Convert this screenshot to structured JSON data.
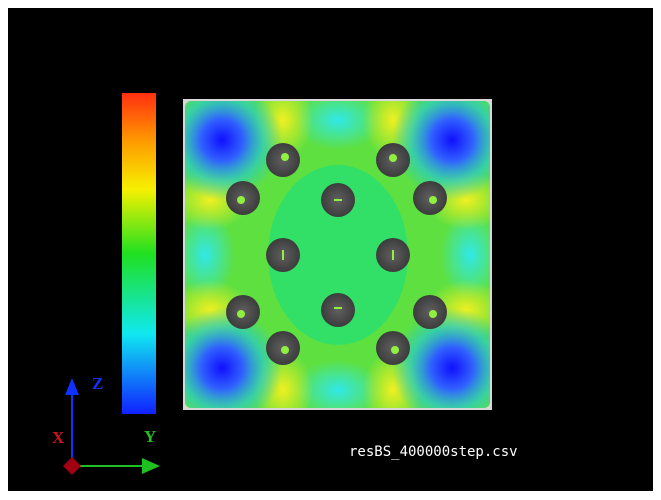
{
  "axes": {
    "z": "Z",
    "x": "X",
    "y": "Y"
  },
  "file_name": "resBS_400000step.csv"
}
